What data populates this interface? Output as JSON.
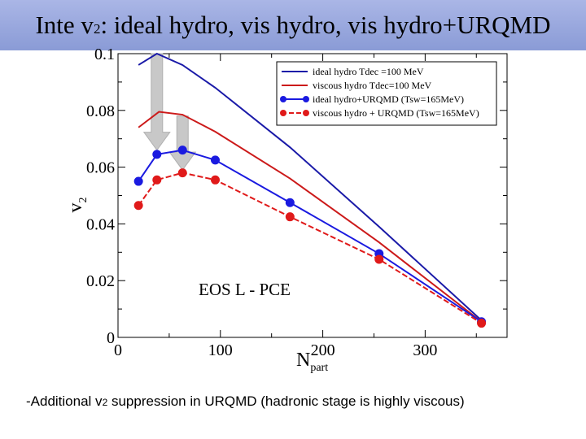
{
  "slide": {
    "title_lead": "Inte v",
    "title_sub": "2",
    "title_tail": ":  ideal hydro, vis hydro, vis hydro+URQMD",
    "footer_lead": "-Additional v",
    "footer_sub": "2",
    "footer_tail": " suppression in URQMD (hadronic stage is highly viscous)"
  },
  "chart_data": {
    "type": "line",
    "xlabel": "N",
    "xlabel_sub": "part",
    "ylabel": "v",
    "ylabel_sub": "2",
    "xlim": [
      0,
      380
    ],
    "ylim": [
      0,
      0.1
    ],
    "x_ticks": [
      {
        "value": 0,
        "label": "0"
      },
      {
        "value": 100,
        "label": "100"
      },
      {
        "value": 200,
        "label": "200"
      },
      {
        "value": 300,
        "label": "300"
      }
    ],
    "y_ticks": [
      {
        "value": 0,
        "label": "0"
      },
      {
        "value": 0.02,
        "label": "0.02"
      },
      {
        "value": 0.04,
        "label": "0.04"
      },
      {
        "value": 0.06,
        "label": "0.06"
      },
      {
        "value": 0.08,
        "label": "0.08"
      },
      {
        "value": 0.1,
        "label": "0.1"
      }
    ],
    "annotation": "EOS L - PCE",
    "legend_position": "top-right",
    "series": [
      {
        "name": "ideal hydro Tdec =100 MeV",
        "color": "#1a1aa8",
        "style": "solid",
        "markers": false,
        "points": [
          [
            20,
            0.096
          ],
          [
            38,
            0.1
          ],
          [
            63,
            0.096
          ],
          [
            95,
            0.088
          ],
          [
            168,
            0.067
          ],
          [
            255,
            0.039
          ],
          [
            355,
            0.006
          ]
        ]
      },
      {
        "name": "viscous hydro Tdec=100 MeV",
        "color": "#cc1a1a",
        "style": "solid",
        "markers": false,
        "points": [
          [
            20,
            0.074
          ],
          [
            40,
            0.0795
          ],
          [
            63,
            0.0785
          ],
          [
            95,
            0.0725
          ],
          [
            168,
            0.056
          ],
          [
            255,
            0.0335
          ],
          [
            355,
            0.0055
          ]
        ]
      },
      {
        "name": "ideal hydro+URQMD (Tsw=165MeV)",
        "color": "#1a1ae0",
        "style": "solid",
        "markers": true,
        "points": [
          [
            20,
            0.055
          ],
          [
            38,
            0.0645
          ],
          [
            63,
            0.066
          ],
          [
            95,
            0.0625
          ],
          [
            168,
            0.0475
          ],
          [
            255,
            0.0295
          ],
          [
            355,
            0.0055
          ]
        ]
      },
      {
        "name": "viscous hydro + URQMD (Tsw=165MeV)",
        "color": "#e01a1a",
        "style": "dashed",
        "markers": true,
        "points": [
          [
            20,
            0.0465
          ],
          [
            38,
            0.0555
          ],
          [
            63,
            0.058
          ],
          [
            95,
            0.0555
          ],
          [
            168,
            0.0425
          ],
          [
            255,
            0.0275
          ],
          [
            355,
            0.005
          ]
        ]
      }
    ],
    "arrows": [
      {
        "x": 38,
        "y_from": 0.1,
        "y_to": 0.066
      },
      {
        "x": 63,
        "y_from": 0.078,
        "y_to": 0.059
      }
    ]
  }
}
